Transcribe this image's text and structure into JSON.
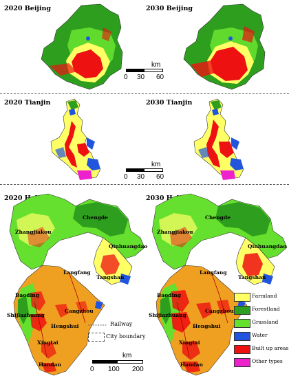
{
  "panels": {
    "beijing_2020": "2020 Beijing",
    "beijing_2030": "2030 Beijing",
    "tianjin_2020": "2020 Tianjin",
    "tianjin_2030": "2030 Tianjin",
    "hebei_2020": "2020 Hebei",
    "hebei_2030": "2030 Hebei"
  },
  "scalebars": {
    "beijing": {
      "ticks": [
        "0",
        "30",
        "60"
      ],
      "unit": "km"
    },
    "tianjin": {
      "ticks": [
        "0",
        "30",
        "60"
      ],
      "unit": "km"
    },
    "hebei": {
      "ticks": [
        "0",
        "100",
        "200"
      ],
      "unit": "km"
    }
  },
  "cities": {
    "left": {
      "chengde": "Chengde",
      "zhangjiakou": "Zhangjiakou",
      "qinhuangdao": "Qinhuangdao",
      "langfang": "Langfang",
      "tangshan": "Tangshan",
      "baoding": "Baoding",
      "cangzhou": "Cangzhou",
      "shijiazhuang": "Shijiazhuang",
      "hengshui": "Hengshui",
      "xingtai": "Xingtai",
      "handan": "Handan"
    },
    "right": {
      "chengde": "Chengde",
      "zhangjiakou": "Zhangjiakou",
      "qinhuangdao": "Qinhuangdao",
      "langfang": "Langfang",
      "tangshan": "Tangshan",
      "baoding": "Baoding",
      "cangzhou": "Cangzhou",
      "shijiazhuang": "Shijiazhuang",
      "hengshui": "Hengshui",
      "xingtai": "Xingtai",
      "handan": "Handan"
    }
  },
  "boundary_keys": {
    "railway": "Railway",
    "city_boundary": "City boundary"
  },
  "legend": [
    {
      "label": "Farmland",
      "color": "#ffff66"
    },
    {
      "label": "Forestland",
      "color": "#2e9e1e"
    },
    {
      "label": "Grassland",
      "color": "#66e02e"
    },
    {
      "label": "Water",
      "color": "#2255dd"
    },
    {
      "label": "Built up areas",
      "color": "#ee1111"
    },
    {
      "label": "Other types",
      "color": "#ee22cc"
    }
  ]
}
